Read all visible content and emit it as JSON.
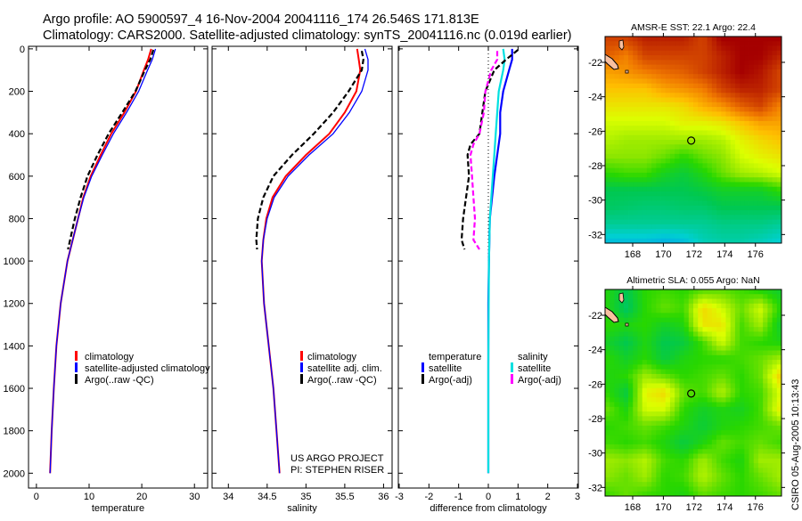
{
  "title": {
    "line1": "Argo profile: AO 5900597_4 16-Nov-2004 20041116_174 26.546S 171.813E",
    "line2": "Climatology: CARS2000. Satellite-adjusted climatology: synTS_20041116.nc (0.019d earlier)"
  },
  "credit": {
    "project": "US ARGO PROJECT",
    "pi": "PI: STEPHEN RISER",
    "stamp": "CSIRO 05-Aug-2005 10:13:43"
  },
  "colors": {
    "climatology": "#ff0000",
    "satellite": "#0000ff",
    "argo": "#000000",
    "sal_satellite": "#00e0e0",
    "sal_argo": "#ff00ff"
  },
  "chart_data": [
    {
      "type": "line",
      "xlabel": "temperature",
      "ylabel": "",
      "xlim": [
        -1.5,
        32.5
      ],
      "ylim": [
        2070,
        -12
      ],
      "xticks": [
        "0",
        "10",
        "20",
        "30"
      ],
      "yticks": [
        "0",
        "200",
        "400",
        "600",
        "800",
        "1000",
        "1200",
        "1400",
        "1600",
        "1800",
        "2000"
      ],
      "legend": [
        "climatology",
        "satellite-adjusted climatology",
        "Argo(..raw -QC)"
      ],
      "series": [
        {
          "name": "climatology",
          "depth": [
            0,
            50,
            100,
            200,
            300,
            400,
            500,
            600,
            700,
            800,
            1000,
            1200,
            1400,
            1600,
            1800,
            2000
          ],
          "values": [
            21.8,
            21.2,
            20.4,
            18.9,
            16.7,
            14.2,
            12.2,
            10.3,
            8.9,
            7.9,
            5.9,
            4.6,
            3.8,
            3.3,
            2.9,
            2.6
          ]
        },
        {
          "name": "satellite-adjusted climatology",
          "depth": [
            0,
            50,
            100,
            200,
            300,
            400,
            500,
            600,
            700,
            800,
            1000,
            1200,
            1400,
            1600,
            1800,
            2000
          ],
          "values": [
            22.6,
            22.0,
            21.1,
            19.4,
            17.1,
            14.6,
            12.5,
            10.5,
            9.0,
            7.9,
            5.9,
            4.6,
            3.8,
            3.3,
            2.9,
            2.6
          ]
        },
        {
          "name": "Argo(..raw -QC)",
          "depth": [
            5,
            50,
            100,
            200,
            300,
            400,
            500,
            600,
            700,
            800,
            900,
            945
          ],
          "values": [
            22.2,
            21.6,
            20.6,
            18.8,
            16.3,
            13.7,
            11.6,
            9.7,
            8.4,
            7.3,
            6.4,
            6.0
          ]
        }
      ]
    },
    {
      "type": "line",
      "xlabel": "salinity",
      "xlim": [
        33.79,
        36.11
      ],
      "ylim": [
        2070,
        -12
      ],
      "xticks": [
        "34",
        "34.5",
        "35",
        "35.5",
        "36"
      ],
      "legend": [
        "climatology",
        "satellite adj. clim.",
        "Argo(..raw -QC)"
      ],
      "series": [
        {
          "name": "climatology",
          "depth": [
            0,
            50,
            100,
            200,
            300,
            400,
            500,
            600,
            700,
            800,
            900,
            1000,
            1200,
            1400,
            1600,
            1800,
            2000
          ],
          "values": [
            35.66,
            35.68,
            35.7,
            35.65,
            35.5,
            35.3,
            35.0,
            34.74,
            34.57,
            34.49,
            34.45,
            34.43,
            34.46,
            34.52,
            34.58,
            34.62,
            34.66
          ]
        },
        {
          "name": "satellite adj. clim.",
          "depth": [
            0,
            50,
            100,
            200,
            300,
            400,
            500,
            600,
            700,
            800,
            900,
            1000,
            1200,
            1400,
            1600,
            1800,
            2000
          ],
          "values": [
            35.76,
            35.8,
            35.8,
            35.72,
            35.56,
            35.35,
            35.04,
            34.77,
            34.59,
            34.5,
            34.45,
            34.43,
            34.46,
            34.52,
            34.58,
            34.62,
            34.66
          ]
        },
        {
          "name": "Argo(..raw -QC)",
          "depth": [
            10,
            50,
            100,
            200,
            300,
            400,
            500,
            600,
            700,
            800,
            900,
            945
          ],
          "values": [
            35.72,
            35.74,
            35.72,
            35.55,
            35.35,
            35.1,
            34.82,
            34.58,
            34.45,
            34.38,
            34.36,
            34.37
          ]
        }
      ]
    },
    {
      "type": "line",
      "xlabel": "difference from climatology",
      "xlim": [
        -3.03,
        3.03
      ],
      "ylim": [
        2070,
        -12
      ],
      "xticks": [
        "-3",
        "-2",
        "-1",
        "0",
        "1",
        "2",
        "3"
      ],
      "legend_left": [
        "temperature",
        "satellite",
        "Argo(-adj)"
      ],
      "legend_right": [
        "salinity",
        "satellite",
        "Argo(-adj)"
      ],
      "series": [
        {
          "name": "temperature satellite",
          "depth": [
            0,
            50,
            100,
            150,
            200,
            300,
            400,
            500,
            600,
            800,
            1000,
            1200,
            1500,
            2000
          ],
          "values": [
            0.8,
            0.8,
            0.7,
            0.6,
            0.5,
            0.4,
            0.4,
            0.3,
            0.2,
            0.05,
            0.02,
            0.0,
            0.0,
            0.0
          ]
        },
        {
          "name": "salinity satellite",
          "depth": [
            0,
            50,
            100,
            200,
            300,
            400,
            500,
            600,
            800,
            1000,
            1500,
            2000
          ],
          "values": [
            0.5,
            0.55,
            0.5,
            0.35,
            0.3,
            0.25,
            0.2,
            0.15,
            0.05,
            0.02,
            0.0,
            0.0
          ]
        },
        {
          "name": "temperature Argo(-adj)",
          "depth": [
            5,
            50,
            100,
            200,
            300,
            400,
            450,
            500,
            600,
            700,
            800,
            900,
            945
          ],
          "values": [
            1.0,
            0.6,
            0.2,
            -0.1,
            -0.2,
            -0.3,
            -0.6,
            -0.7,
            -0.65,
            -0.75,
            -0.85,
            -0.9,
            -0.8
          ]
        },
        {
          "name": "salinity Argo(-adj)",
          "depth": [
            10,
            50,
            100,
            200,
            300,
            400,
            450,
            500,
            600,
            700,
            800,
            900,
            945
          ],
          "values": [
            0.3,
            0.3,
            0.1,
            -0.1,
            -0.15,
            -0.3,
            -0.5,
            -0.6,
            -0.55,
            -0.5,
            -0.45,
            -0.5,
            -0.3
          ]
        }
      ]
    },
    {
      "type": "heatmap",
      "title": "AMSR-E SST: 22.1 Argo: 22.4",
      "xlim": [
        166.2,
        177.7
      ],
      "ylim": [
        -32.5,
        -20.5
      ],
      "xticks": [
        "168",
        "170",
        "172",
        "174",
        "176"
      ],
      "yticks": [
        "-22",
        "-24",
        "-26",
        "-28",
        "-30",
        "-32"
      ],
      "marker": {
        "lon": 171.813,
        "lat": -26.546
      },
      "grid": [
        [
          0.85,
          0.85,
          0.9,
          0.9,
          0.9,
          0.85,
          0.95,
          0.95,
          0.95,
          0.95
        ],
        [
          0.8,
          0.75,
          0.85,
          0.85,
          0.85,
          0.85,
          0.9,
          0.95,
          0.95,
          0.9
        ],
        [
          0.7,
          0.72,
          0.75,
          0.78,
          0.8,
          0.85,
          0.9,
          0.95,
          0.92,
          0.85
        ],
        [
          0.65,
          0.65,
          0.65,
          0.7,
          0.72,
          0.75,
          0.85,
          0.9,
          0.9,
          0.85
        ],
        [
          0.6,
          0.6,
          0.6,
          0.6,
          0.62,
          0.68,
          0.72,
          0.8,
          0.85,
          0.75
        ],
        [
          0.55,
          0.55,
          0.55,
          0.55,
          0.58,
          0.58,
          0.6,
          0.65,
          0.7,
          0.7
        ],
        [
          0.52,
          0.5,
          0.5,
          0.5,
          0.5,
          0.5,
          0.52,
          0.58,
          0.62,
          0.65
        ],
        [
          0.48,
          0.48,
          0.48,
          0.45,
          0.4,
          0.45,
          0.48,
          0.55,
          0.58,
          0.6
        ],
        [
          0.4,
          0.42,
          0.42,
          0.36,
          0.33,
          0.38,
          0.45,
          0.5,
          0.52,
          0.55
        ],
        [
          0.3,
          0.3,
          0.3,
          0.3,
          0.3,
          0.32,
          0.35,
          0.35,
          0.35,
          0.4
        ],
        [
          0.28,
          0.27,
          0.26,
          0.26,
          0.27,
          0.27,
          0.3,
          0.3,
          0.3,
          0.3
        ],
        [
          0.22,
          0.22,
          0.22,
          0.22,
          0.22,
          0.22,
          0.24,
          0.24,
          0.24,
          0.22
        ],
        [
          0.12,
          0.12,
          0.12,
          0.1,
          0.12,
          0.18,
          0.2,
          0.2,
          0.18,
          0.15
        ]
      ]
    },
    {
      "type": "heatmap",
      "title": "Altimetric SLA: 0.055 Argo: NaN",
      "xlim": [
        166.2,
        177.7
      ],
      "ylim": [
        -32.5,
        -20.5
      ],
      "xticks": [
        "168",
        "170",
        "172",
        "174",
        "176"
      ],
      "yticks": [
        "-22",
        "-24",
        "-26",
        "-28",
        "-30",
        "-32"
      ],
      "marker": {
        "lon": 171.813,
        "lat": -26.546
      },
      "grid": [
        [
          0.38,
          0.3,
          0.4,
          0.42,
          0.4,
          0.45,
          0.45,
          0.42,
          0.4,
          0.35
        ],
        [
          0.38,
          0.28,
          0.4,
          0.45,
          0.42,
          0.62,
          0.55,
          0.45,
          0.55,
          0.4
        ],
        [
          0.4,
          0.38,
          0.4,
          0.35,
          0.38,
          0.6,
          0.6,
          0.42,
          0.5,
          0.35
        ],
        [
          0.35,
          0.3,
          0.38,
          0.3,
          0.32,
          0.42,
          0.55,
          0.42,
          0.4,
          0.38
        ],
        [
          0.4,
          0.35,
          0.4,
          0.32,
          0.38,
          0.4,
          0.4,
          0.42,
          0.45,
          0.5
        ],
        [
          0.38,
          0.4,
          0.5,
          0.45,
          0.4,
          0.42,
          0.45,
          0.4,
          0.45,
          0.62
        ],
        [
          0.4,
          0.32,
          0.58,
          0.62,
          0.45,
          0.42,
          0.52,
          0.4,
          0.42,
          0.55
        ],
        [
          0.45,
          0.38,
          0.55,
          0.55,
          0.4,
          0.35,
          0.38,
          0.36,
          0.42,
          0.58
        ],
        [
          0.4,
          0.42,
          0.45,
          0.42,
          0.38,
          0.33,
          0.38,
          0.4,
          0.42,
          0.45
        ],
        [
          0.42,
          0.4,
          0.42,
          0.38,
          0.32,
          0.38,
          0.45,
          0.42,
          0.45,
          0.42
        ],
        [
          0.5,
          0.48,
          0.52,
          0.42,
          0.4,
          0.5,
          0.42,
          0.38,
          0.5,
          0.5
        ],
        [
          0.48,
          0.45,
          0.5,
          0.4,
          0.42,
          0.52,
          0.45,
          0.4,
          0.45,
          0.5
        ],
        [
          0.42,
          0.45,
          0.42,
          0.4,
          0.38,
          0.45,
          0.42,
          0.4,
          0.42,
          0.45
        ]
      ]
    }
  ]
}
